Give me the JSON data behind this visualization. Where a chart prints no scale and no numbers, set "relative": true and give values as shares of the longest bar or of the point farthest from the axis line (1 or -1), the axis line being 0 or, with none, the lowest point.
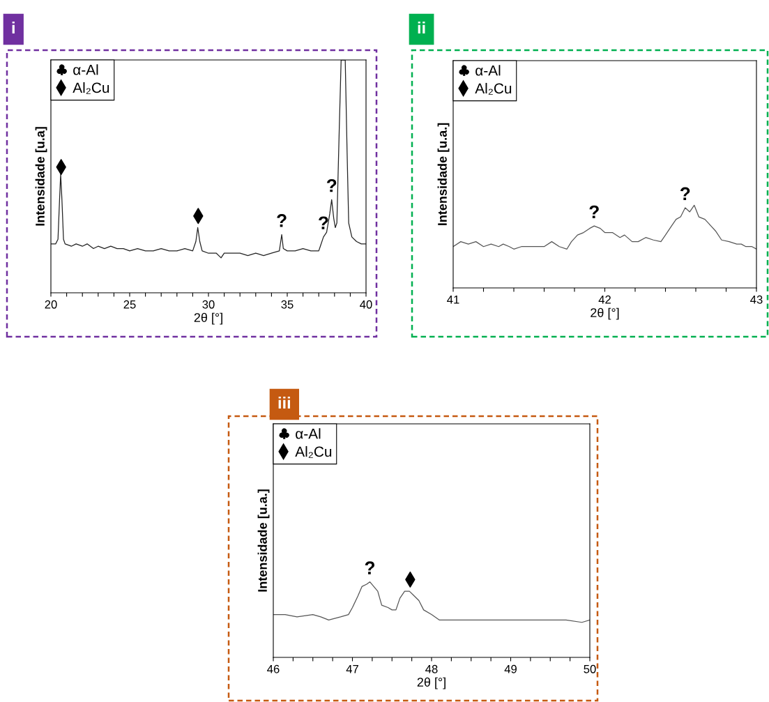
{
  "chart_data": [
    {
      "type": "line",
      "title": "i",
      "xlabel": "2θ [°]",
      "ylabel": "Intensidade [u.a]",
      "relative": true,
      "tick_labels": "x",
      "legend": "top left",
      "xlim": [
        20,
        40
      ],
      "xticks": [
        20,
        {
          "value": 21,
          "label": null
        },
        {
          "value": 22,
          "label": null
        },
        {
          "value": 23,
          "label": null
        },
        {
          "value": 24,
          "label": null
        },
        25,
        {
          "value": 26,
          "label": null
        },
        {
          "value": 27,
          "label": null
        },
        {
          "value": 28,
          "label": null
        },
        {
          "value": 29,
          "label": null
        },
        30,
        {
          "value": 31,
          "label": null
        },
        {
          "value": 32,
          "label": null
        },
        {
          "value": 33,
          "label": null
        },
        {
          "value": 34,
          "label": null
        },
        35,
        {
          "value": 36,
          "label": null
        },
        {
          "value": 37,
          "label": null
        },
        {
          "value": 38,
          "label": null
        },
        {
          "value": 39,
          "label": null
        },
        40
      ],
      "series": [
        {
          "color": "#222222",
          "line_style": "solid",
          "x": [
            20.0,
            20.3,
            20.45,
            20.55,
            20.62,
            20.7,
            20.8,
            20.9,
            21.3,
            21.6,
            22.0,
            22.3,
            22.7,
            23.0,
            23.4,
            23.8,
            24.2,
            24.6,
            25.0,
            25.5,
            26.0,
            26.5,
            27.0,
            27.5,
            28.0,
            28.5,
            29.0,
            29.2,
            29.32,
            29.45,
            29.6,
            30.0,
            30.5,
            30.8,
            31.0,
            31.5,
            32.0,
            32.5,
            33.0,
            33.5,
            34.0,
            34.5,
            34.65,
            34.75,
            35.0,
            35.5,
            36.0,
            36.5,
            37.0,
            37.1,
            37.3,
            37.5,
            37.7,
            37.82,
            37.95,
            38.05,
            38.15,
            38.3,
            38.42,
            38.68,
            38.8,
            38.9,
            39.1,
            39.4,
            39.7,
            40.0
          ],
          "values": [
            0.21,
            0.21,
            0.23,
            0.4,
            0.51,
            0.4,
            0.23,
            0.21,
            0.2,
            0.21,
            0.2,
            0.21,
            0.19,
            0.2,
            0.19,
            0.2,
            0.19,
            0.19,
            0.18,
            0.19,
            0.18,
            0.18,
            0.19,
            0.18,
            0.18,
            0.19,
            0.18,
            0.22,
            0.28,
            0.22,
            0.18,
            0.17,
            0.17,
            0.15,
            0.17,
            0.17,
            0.17,
            0.16,
            0.17,
            0.16,
            0.17,
            0.18,
            0.25,
            0.19,
            0.18,
            0.18,
            0.19,
            0.18,
            0.18,
            0.2,
            0.24,
            0.26,
            0.34,
            0.4,
            0.32,
            0.28,
            0.3,
            0.7,
            1.0,
            1.0,
            0.6,
            0.3,
            0.24,
            0.22,
            0.21,
            0.21
          ]
        },
        {
          "type": "scatter",
          "name": "α-Al",
          "marker": "club",
          "color": "#000000"
        },
        {
          "type": "scatter",
          "name": "Al₂Cu",
          "marker": "diamond",
          "color": "#000000",
          "x": [
            20.65,
            29.35
          ],
          "values": [
            0.54,
            0.33
          ]
        }
      ],
      "annotations": [
        {
          "text": "?",
          "x": 34.65,
          "y": 0.25
        },
        {
          "text": "?",
          "x": 37.3,
          "y": 0.24
        },
        {
          "text": "?",
          "x": 37.82,
          "y": 0.4
        }
      ]
    },
    {
      "type": "line",
      "title": "ii",
      "xlabel": "2θ [°]",
      "ylabel": "Intensidade [u.a.]",
      "relative": true,
      "tick_labels": "x",
      "legend": "top left",
      "xlim": [
        41,
        43
      ],
      "xticks": [
        41,
        {
          "value": 41.2,
          "label": null
        },
        {
          "value": 41.4,
          "label": null
        },
        {
          "value": 41.6,
          "label": null
        },
        {
          "value": 41.8,
          "label": null
        },
        42,
        {
          "value": 42.2,
          "label": null
        },
        {
          "value": 42.4,
          "label": null
        },
        {
          "value": 42.6,
          "label": null
        },
        {
          "value": 42.8,
          "label": null
        },
        43
      ],
      "series": [
        {
          "color": "#555555",
          "line_style": "solid",
          "x": [
            41.0,
            41.05,
            41.1,
            41.15,
            41.2,
            41.25,
            41.3,
            41.33,
            41.37,
            41.4,
            41.45,
            41.5,
            41.55,
            41.6,
            41.65,
            41.7,
            41.75,
            41.78,
            41.82,
            41.86,
            41.9,
            41.93,
            41.97,
            42.0,
            42.05,
            42.1,
            42.13,
            42.18,
            42.22,
            42.27,
            42.32,
            42.37,
            42.4,
            42.44,
            42.47,
            42.5,
            42.53,
            42.56,
            42.59,
            42.62,
            42.66,
            42.7,
            42.73,
            42.77,
            42.82,
            42.87,
            42.9,
            42.93,
            42.97,
            43.0
          ],
          "values": [
            0.5,
            0.56,
            0.53,
            0.56,
            0.5,
            0.53,
            0.5,
            0.53,
            0.5,
            0.47,
            0.5,
            0.5,
            0.5,
            0.5,
            0.56,
            0.5,
            0.47,
            0.56,
            0.64,
            0.67,
            0.72,
            0.75,
            0.72,
            0.67,
            0.67,
            0.61,
            0.64,
            0.56,
            0.56,
            0.61,
            0.58,
            0.56,
            0.64,
            0.75,
            0.83,
            0.86,
            0.97,
            0.92,
            1.0,
            0.86,
            0.83,
            0.75,
            0.69,
            0.58,
            0.56,
            0.53,
            0.53,
            0.5,
            0.5,
            0.47
          ]
        },
        {
          "type": "scatter",
          "name": "α-Al",
          "marker": "club",
          "color": "#000000"
        },
        {
          "type": "scatter",
          "name": "Al₂Cu",
          "marker": "diamond",
          "color": "#000000"
        }
      ],
      "annotations": [
        {
          "text": "?",
          "x": 41.93,
          "y": 0.75
        },
        {
          "text": "?",
          "x": 42.53,
          "y": 0.97
        }
      ]
    },
    {
      "type": "line",
      "title": "iii",
      "xlabel": "2θ [°]",
      "ylabel": "Intensidade [u.a.]",
      "relative": true,
      "tick_labels": "x",
      "legend": "top left",
      "xlim": [
        46,
        50
      ],
      "xticks": [
        46,
        {
          "value": 46.25,
          "label": null
        },
        {
          "value": 46.5,
          "label": null
        },
        {
          "value": 46.75,
          "label": null
        },
        47,
        {
          "value": 47.25,
          "label": null
        },
        {
          "value": 47.5,
          "label": null
        },
        {
          "value": 47.75,
          "label": null
        },
        48,
        {
          "value": 48.25,
          "label": null
        },
        {
          "value": 48.5,
          "label": null
        },
        {
          "value": 48.75,
          "label": null
        },
        49,
        {
          "value": 49.25,
          "label": null
        },
        {
          "value": 49.5,
          "label": null
        },
        {
          "value": 49.75,
          "label": null
        },
        50
      ],
      "series": [
        {
          "color": "#555555",
          "line_style": "solid",
          "x": [
            46.0,
            46.15,
            46.3,
            46.5,
            46.6,
            46.7,
            46.85,
            46.95,
            47.0,
            47.07,
            47.12,
            47.18,
            47.22,
            47.27,
            47.32,
            47.37,
            47.45,
            47.5,
            47.55,
            47.6,
            47.66,
            47.72,
            47.78,
            47.84,
            47.9,
            48.0,
            48.1,
            48.3,
            48.5,
            48.7,
            48.9,
            49.1,
            49.3,
            49.5,
            49.7,
            49.9,
            50.0
          ],
          "values": [
            0.55,
            0.55,
            0.52,
            0.55,
            0.52,
            0.48,
            0.52,
            0.55,
            0.64,
            0.79,
            0.91,
            0.94,
            0.97,
            0.91,
            0.85,
            0.67,
            0.64,
            0.61,
            0.61,
            0.76,
            0.85,
            0.85,
            0.79,
            0.73,
            0.61,
            0.55,
            0.48,
            0.48,
            0.48,
            0.48,
            0.48,
            0.48,
            0.48,
            0.48,
            0.48,
            0.45,
            0.48
          ]
        },
        {
          "type": "scatter",
          "name": "α-Al",
          "marker": "club",
          "color": "#000000"
        },
        {
          "type": "scatter",
          "name": "Al₂Cu",
          "marker": "diamond",
          "color": "#000000",
          "x": [
            47.73
          ],
          "values": [
            1.0
          ]
        }
      ],
      "annotations": [
        {
          "text": "?",
          "x": 47.22,
          "y": 0.97
        }
      ]
    }
  ]
}
